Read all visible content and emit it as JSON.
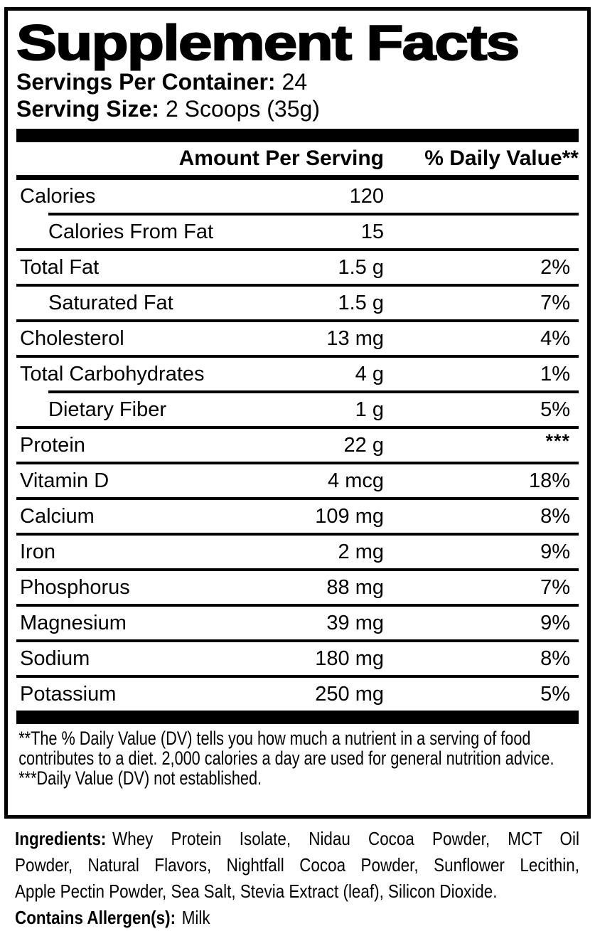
{
  "colors": {
    "ink": "#000000",
    "background": "#ffffff"
  },
  "title": "Supplement Facts",
  "servings": {
    "label": "Servings Per Container:",
    "value": "24"
  },
  "serving_size": {
    "label": "Serving Size:",
    "value": "2 Scoops (35g)"
  },
  "header": {
    "amount": "Amount Per Serving",
    "daily_value": "% Daily Value**"
  },
  "rows": [
    {
      "label": "Calories",
      "amount": "120",
      "daily_value": "",
      "indent": false,
      "divider_above": "none",
      "daily_value_raised": false
    },
    {
      "label": "Calories From Fat",
      "amount": "15",
      "daily_value": "",
      "indent": true,
      "divider_above": "indent",
      "daily_value_raised": false
    },
    {
      "label": "Total Fat",
      "amount": "1.5 g",
      "daily_value": "2%",
      "indent": false,
      "divider_above": "full",
      "daily_value_raised": false
    },
    {
      "label": "Saturated Fat",
      "amount": "1.5 g",
      "daily_value": "7%",
      "indent": true,
      "divider_above": "full",
      "daily_value_raised": false
    },
    {
      "label": "Cholesterol",
      "amount": "13 mg",
      "daily_value": "4%",
      "indent": false,
      "divider_above": "full",
      "daily_value_raised": false
    },
    {
      "label": "Total Carbohydrates",
      "amount": "4 g",
      "daily_value": "1%",
      "indent": false,
      "divider_above": "full",
      "daily_value_raised": false
    },
    {
      "label": "Dietary Fiber",
      "amount": "1 g",
      "daily_value": "5%",
      "indent": true,
      "divider_above": "indent",
      "daily_value_raised": false
    },
    {
      "label": "Protein",
      "amount": "22 g",
      "daily_value": "***",
      "indent": false,
      "divider_above": "full",
      "daily_value_raised": true
    },
    {
      "label": "Vitamin D",
      "amount": "4 mcg",
      "daily_value": "18%",
      "indent": false,
      "divider_above": "full",
      "daily_value_raised": false
    },
    {
      "label": "Calcium",
      "amount": "109 mg",
      "daily_value": "8%",
      "indent": false,
      "divider_above": "full",
      "daily_value_raised": false
    },
    {
      "label": "Iron",
      "amount": "2 mg",
      "daily_value": "9%",
      "indent": false,
      "divider_above": "full",
      "daily_value_raised": false
    },
    {
      "label": "Phosphorus",
      "amount": "88 mg",
      "daily_value": "7%",
      "indent": false,
      "divider_above": "full",
      "daily_value_raised": false
    },
    {
      "label": "Magnesium",
      "amount": "39 mg",
      "daily_value": "9%",
      "indent": false,
      "divider_above": "full",
      "daily_value_raised": false
    },
    {
      "label": "Sodium",
      "amount": "180 mg",
      "daily_value": "8%",
      "indent": false,
      "divider_above": "full",
      "daily_value_raised": false
    },
    {
      "label": "Potassium",
      "amount": "250 mg",
      "daily_value": "5%",
      "indent": false,
      "divider_above": "full",
      "daily_value_raised": false
    }
  ],
  "footnotes": [
    "**The % Daily Value (DV) tells you how much a nutrient in a serving of food contributes to a diet. 2,000 calories a day are used for general nutrition advice.",
    "***Daily Value (DV) not established."
  ],
  "ingredients": {
    "label": "Ingredients:",
    "lines": [
      "Whey Protein Isolate, Nidau Cocoa Powder, MCT Oil",
      "Powder, Natural Flavors, Nightfall Cocoa Powder, Sunflower Lecithin,",
      "Apple Pectin Powder, Sea Salt, Stevia Extract (leaf), Silicon Dioxide."
    ]
  },
  "allergen": {
    "label": "Contains Allergen(s):",
    "value": "Milk"
  }
}
